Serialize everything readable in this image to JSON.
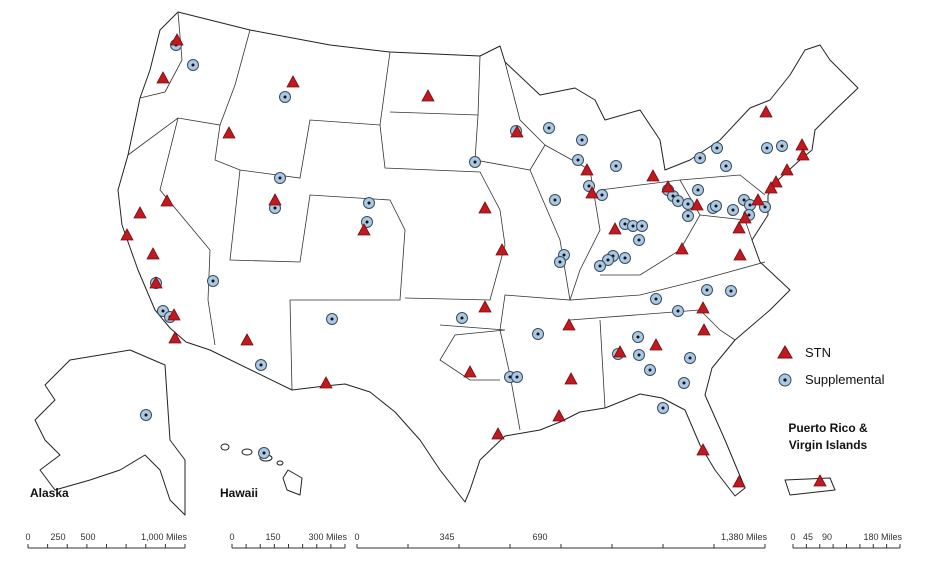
{
  "legend": {
    "items": [
      "STN",
      "Supplemental"
    ]
  },
  "insets": {
    "alaska": "Alaska",
    "hawaii": "Hawaii",
    "puerto_rico": [
      "Puerto Rico &",
      "Virgin Islands"
    ]
  },
  "scale_bars": [
    {
      "labels": [
        "0",
        "250",
        "500",
        "1,000 Miles"
      ]
    },
    {
      "labels": [
        "0",
        "150",
        "300 Miles"
      ]
    },
    {
      "labels": [
        "0",
        "345",
        "690",
        "1,380 Miles"
      ]
    },
    {
      "labels": [
        "0",
        "45",
        "90",
        "180 Miles"
      ]
    }
  ]
}
